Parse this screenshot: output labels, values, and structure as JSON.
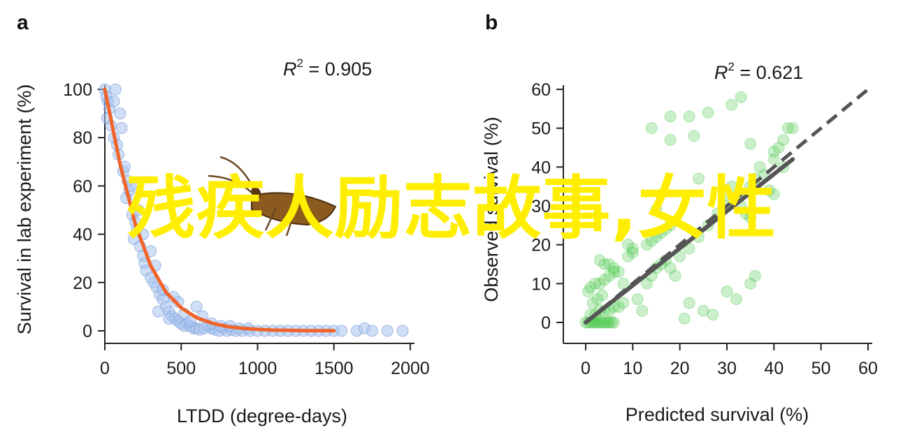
{
  "panel_a_label": "a",
  "panel_b_label": "b",
  "overlay_text": "残疾人励志故事,女性",
  "colors": {
    "blue_points": "#a9c4ee",
    "blue_edge": "#7d9fdc",
    "orange_fit": "#f0642a",
    "green_points": "#3fc43f",
    "gray_line": "#555555"
  },
  "chart_data": [
    {
      "type": "scatter",
      "title": "",
      "xlabel": "LTDD (degree-days)",
      "ylabel": "Survival in lab experiment (%)",
      "xlim": [
        0,
        2000
      ],
      "ylim": [
        0,
        100
      ],
      "xticks": [
        0,
        500,
        1000,
        1500,
        2000
      ],
      "yticks": [
        0,
        20,
        40,
        60,
        80,
        100
      ],
      "annotation": {
        "r2_label": "R",
        "r2_sup": "2",
        "r2_value": " = 0.905"
      },
      "series": [
        {
          "marker": "circle",
          "x": [
            0,
            10,
            20,
            30,
            15,
            40,
            60,
            80,
            70,
            100,
            110,
            90,
            120,
            150,
            160,
            140,
            180,
            200,
            210,
            190,
            230,
            250,
            260,
            270,
            300,
            320,
            340,
            360,
            380,
            400,
            420,
            440,
            460,
            480,
            500,
            520,
            540,
            560,
            580,
            600,
            620,
            650,
            680,
            700,
            720,
            750,
            780,
            800,
            830,
            860,
            900,
            950,
            1000,
            1050,
            1100,
            1150,
            1200,
            1250,
            1300,
            1350,
            1400,
            1450,
            1500,
            1550,
            1650,
            1700,
            1750,
            1850,
            1950,
            350,
            420,
            480,
            520,
            600,
            640,
            560,
            700,
            760,
            820,
            880,
            940,
            380,
            450,
            330,
            250,
            300,
            220,
            170,
            130,
            60
          ],
          "y": [
            100,
            97,
            95,
            92,
            88,
            85,
            80,
            77,
            100,
            90,
            84,
            73,
            66,
            62,
            58,
            55,
            48,
            45,
            42,
            38,
            35,
            31,
            28,
            25,
            22,
            20,
            18,
            15,
            13,
            10,
            8,
            6,
            5,
            4,
            3,
            2,
            3,
            2,
            1,
            1,
            0.5,
            1,
            2,
            1,
            0.5,
            0,
            1,
            0,
            0.5,
            0,
            0,
            0,
            0,
            0,
            0,
            0,
            0,
            0,
            0,
            0,
            0,
            0,
            0,
            0,
            0,
            1,
            0,
            0,
            0,
            8,
            5,
            12,
            7,
            10,
            6,
            4,
            3,
            2,
            2,
            1,
            1,
            17,
            14,
            27,
            40,
            33,
            50,
            60,
            68,
            95
          ]
        },
        {
          "type": "line",
          "name": "",
          "x": [
            0,
            100,
            200,
            300,
            400,
            500,
            600,
            700,
            800,
            900,
            1000,
            1100,
            1200,
            1300,
            1400,
            1500
          ],
          "y": [
            100,
            69,
            44,
            27,
            16,
            9.5,
            5.5,
            3.2,
            1.8,
            1.0,
            0.6,
            0.3,
            0.2,
            0.1,
            0.05,
            0.03
          ]
        }
      ]
    },
    {
      "type": "scatter",
      "title": "",
      "xlabel": "Predicted survival (%)",
      "ylabel": "Observed survival (%)",
      "xlim": [
        0,
        60
      ],
      "ylim": [
        0,
        60
      ],
      "xticks": [
        0,
        10,
        20,
        30,
        40,
        50,
        60
      ],
      "yticks": [
        0,
        10,
        20,
        30,
        40,
        50,
        60
      ],
      "annotation": {
        "r2_label": "R",
        "r2_sup": "2",
        "r2_value": " = 0.621"
      },
      "series": [
        {
          "marker": "circle",
          "x": [
            0,
            0.5,
            1,
            1.5,
            2,
            2.5,
            3,
            3.5,
            4,
            4.5,
            5,
            5.5,
            6,
            1,
            2,
            3,
            4,
            5,
            6,
            1.5,
            2.5,
            3.5,
            0.5,
            1,
            2,
            3,
            4,
            5,
            6,
            7,
            8,
            8,
            7,
            6,
            5,
            4,
            3,
            9,
            10,
            10,
            9,
            13,
            14,
            15,
            16,
            17,
            18,
            13,
            14,
            15,
            16,
            17,
            18,
            19,
            20,
            22,
            24,
            26,
            28,
            30,
            30,
            31,
            32,
            33,
            34,
            35,
            35,
            36,
            37,
            38,
            39,
            40,
            40,
            41,
            42,
            43,
            44,
            18,
            22,
            26,
            14,
            18,
            23,
            31,
            33,
            35,
            40,
            42,
            15,
            24,
            35,
            36,
            30,
            32,
            22,
            12,
            25,
            27,
            21,
            11
          ],
          "y": [
            0,
            0,
            0,
            0,
            0,
            0,
            0,
            0,
            0,
            0,
            0,
            0,
            0,
            2,
            2,
            3,
            3,
            3,
            4,
            5,
            6,
            7,
            8,
            9,
            10,
            10,
            11,
            12,
            13,
            13,
            10,
            5,
            4,
            14,
            15,
            15,
            16,
            17,
            18,
            19,
            20,
            20,
            21,
            22,
            23,
            24,
            25,
            10,
            12,
            14,
            15,
            16,
            14,
            12,
            17,
            19,
            22,
            25,
            28,
            30,
            33,
            35,
            32,
            30,
            28,
            27,
            35,
            37,
            40,
            38,
            34,
            33,
            42,
            45,
            47,
            50,
            50,
            53,
            53,
            54,
            50,
            47,
            48,
            56,
            58,
            46,
            44,
            40,
            29,
            37,
            10,
            12,
            8,
            6,
            5,
            3,
            3,
            2,
            1,
            6
          ]
        },
        {
          "type": "line",
          "name": "",
          "x": [
            0,
            44
          ],
          "y": [
            0,
            42
          ]
        },
        {
          "type": "line",
          "style": "dashed",
          "name": "",
          "x": [
            0,
            60
          ],
          "y": [
            0,
            60
          ]
        }
      ]
    }
  ]
}
